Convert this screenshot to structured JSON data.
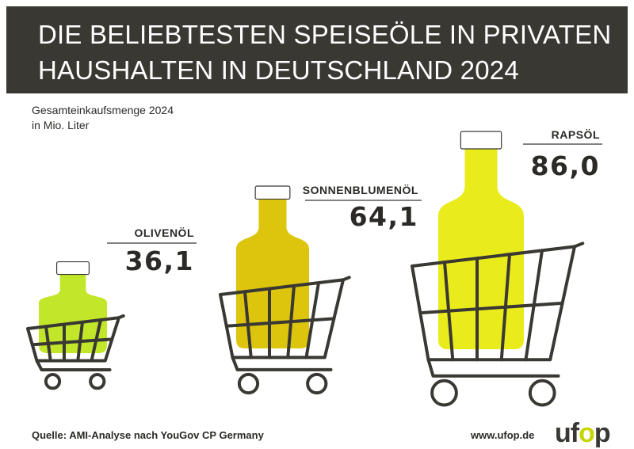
{
  "header": {
    "title_line1": "DIE BELIEBTESTEN SPEISEÖLE IN PRIVATEN",
    "title_line2": "HAUSHALTEN IN DEUTSCHLAND 2024"
  },
  "subtitle": {
    "line1": "Gesamteinkaufsmenge 2024",
    "line2": "in Mio. Liter"
  },
  "chart_data": {
    "type": "bar",
    "categories": [
      "OLIVENÖL",
      "SONNENBLUMENÖL",
      "RAPSÖL"
    ],
    "values": [
      36.1,
      64.1,
      86.0
    ],
    "value_labels": [
      "36,1",
      "64,1",
      "86,0"
    ],
    "colors": [
      "#c2e62a",
      "#dcc50c",
      "#e9eb1b"
    ],
    "title": "DIE BELIEBTESTEN SPEISEÖLE IN PRIVATEN HAUSHALTEN IN DEUTSCHLAND 2024",
    "ylabel": "Gesamteinkaufsmenge 2024 in Mio. Liter"
  },
  "footer": {
    "source": "Quelle: AMI-Analyse nach YouGov CP Germany",
    "url": "www.ufop.de",
    "logo_part1": "uf",
    "logo_dot": "o",
    "logo_part2": "p"
  },
  "colors": {
    "header_bg": "#3a3833",
    "cart": "#3a3833",
    "cap": "#ffffff"
  }
}
